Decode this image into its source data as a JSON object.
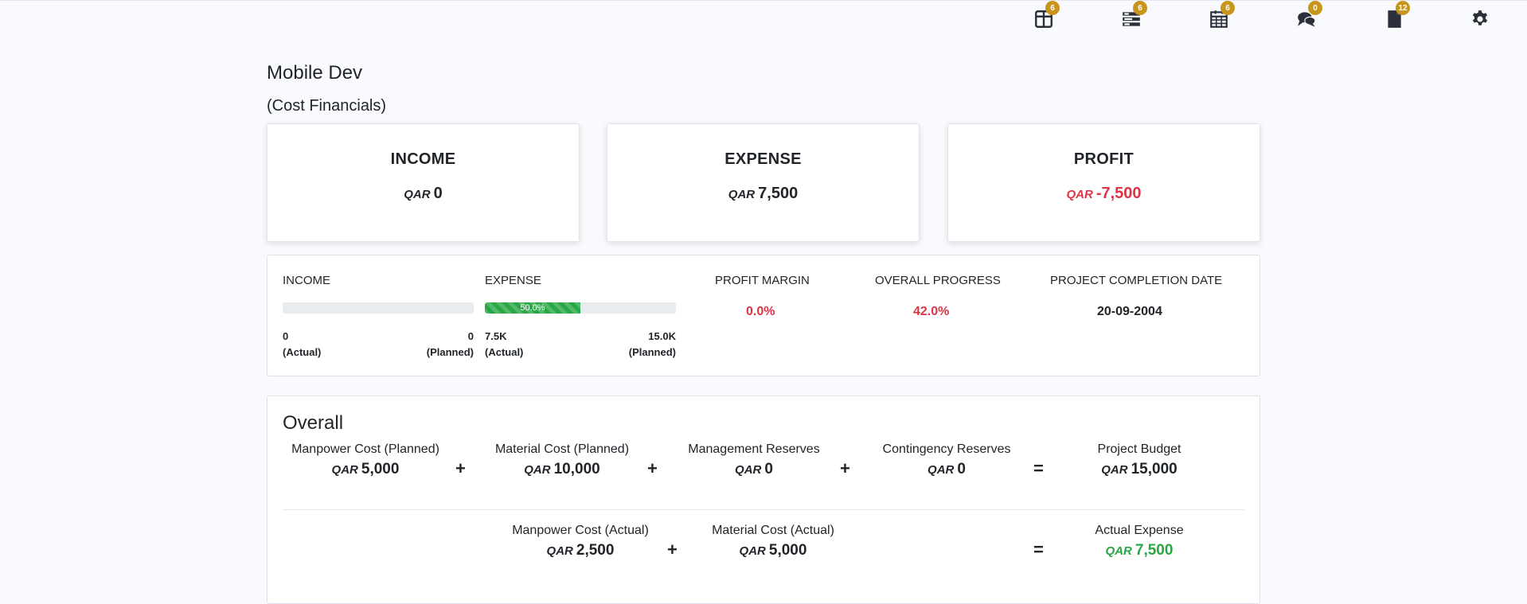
{
  "topbar": {
    "icons": [
      {
        "name": "book-icon",
        "badge": "6"
      },
      {
        "name": "tasks-icon",
        "badge": "6"
      },
      {
        "name": "calendar-icon",
        "badge": "6"
      },
      {
        "name": "comments-icon",
        "badge": "0"
      },
      {
        "name": "document-icon",
        "badge": "12"
      },
      {
        "name": "gear-icon"
      }
    ]
  },
  "page": {
    "title": "Mobile Dev",
    "subtitle": "(Cost Financials)"
  },
  "currency": "QAR",
  "cards": {
    "income": {
      "title": "INCOME",
      "value": "0"
    },
    "expense": {
      "title": "EXPENSE",
      "value": "7,500"
    },
    "profit": {
      "title": "PROFIT",
      "value": "-7,500"
    }
  },
  "summary": {
    "income": {
      "label": "INCOME",
      "progress": 0,
      "actual": "0",
      "actual_label": "(Actual)",
      "planned": "0",
      "planned_label": "(Planned)"
    },
    "expense": {
      "label": "EXPENSE",
      "progress": 50.0,
      "progress_label": "50.0%",
      "actual": "7.5K",
      "actual_label": "(Actual)",
      "planned": "15.0K",
      "planned_label": "(Planned)"
    },
    "profit_margin": {
      "label": "PROFIT MARGIN",
      "value": "0.0%"
    },
    "overall_progress": {
      "label": "OVERALL PROGRESS",
      "value": "42.0%"
    },
    "completion": {
      "label": "PROJECT COMPLETION DATE",
      "value": "20-09-2004"
    }
  },
  "overall": {
    "title": "Overall",
    "plus": "+",
    "equals": "=",
    "planned_row": [
      {
        "label": "Manpower Cost (Planned)",
        "value": "5,000"
      },
      {
        "label": "Material Cost (Planned)",
        "value": "10,000"
      },
      {
        "label": "Management Reserves",
        "value": "0"
      },
      {
        "label": "Contingency Reserves",
        "value": "0"
      },
      {
        "label": "Project Budget",
        "value": "15,000"
      }
    ],
    "actual_row": [
      {
        "label": "Manpower Cost (Actual)",
        "value": "2,500"
      },
      {
        "label": "Material Cost (Actual)",
        "value": "5,000"
      },
      {
        "label": "Actual Expense",
        "value": "7,500"
      }
    ]
  },
  "colors": {
    "accent_badge": "#c8961c",
    "negative": "#dc3545",
    "positive": "#28a745"
  }
}
